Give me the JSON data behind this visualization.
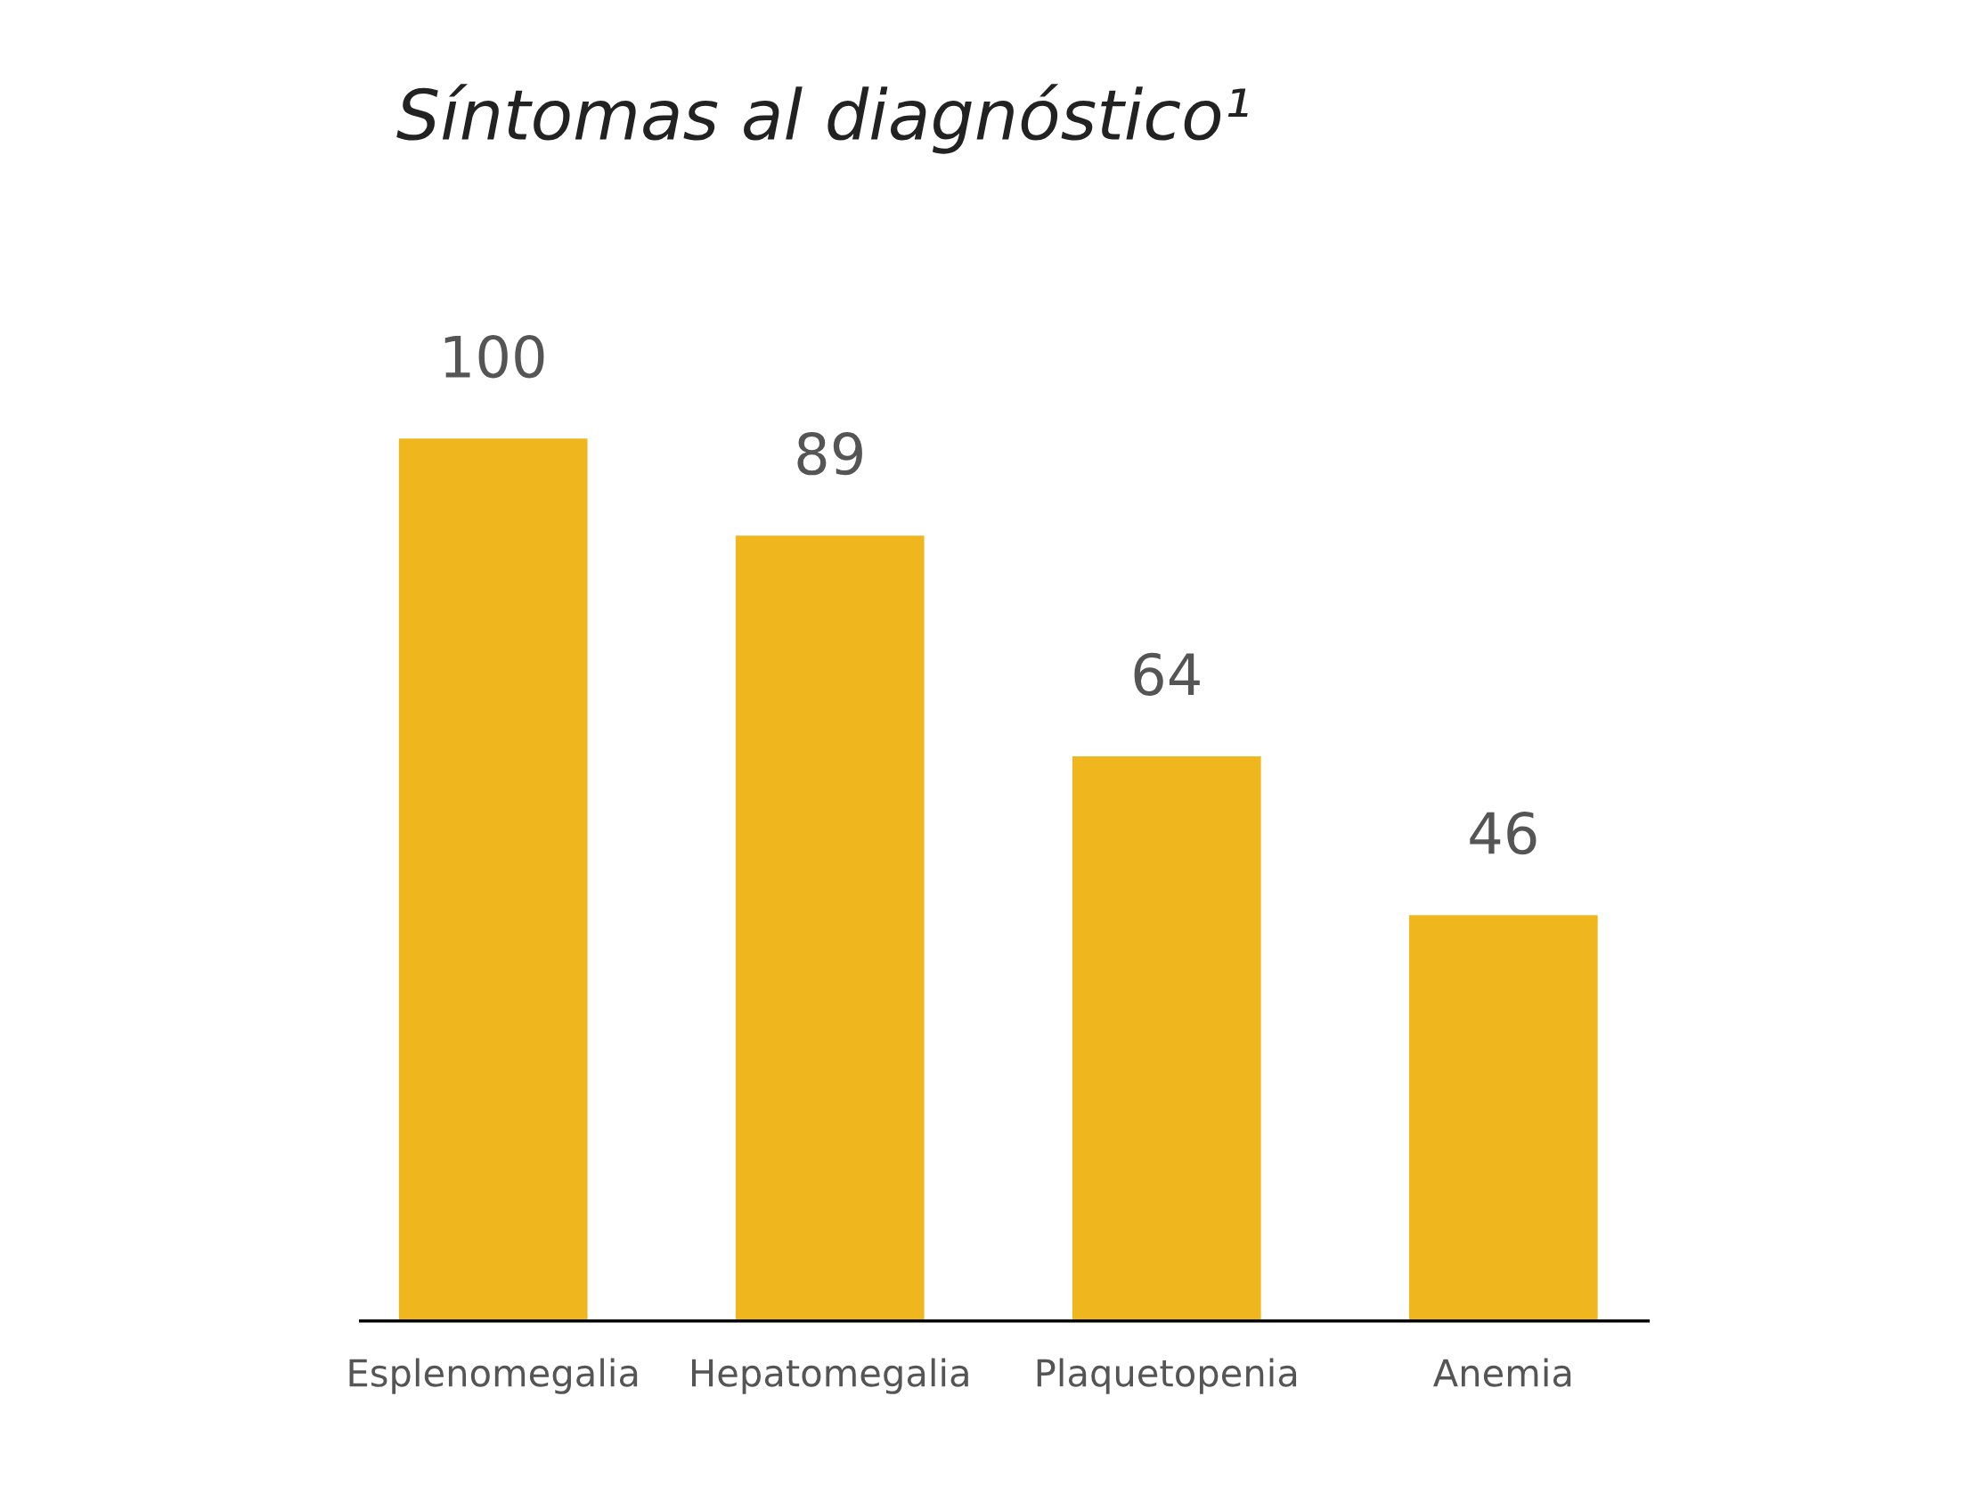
{
  "chart_data": {
    "type": "bar",
    "title": "Síntomas al diagnóstico¹",
    "categories": [
      "Esplenomegalia",
      "Hepatomegalia",
      "Plaquetopenia",
      "Anemia"
    ],
    "values": [
      100,
      89,
      64,
      46
    ],
    "color": "#f0b61e",
    "data_labels": true,
    "grid": false,
    "legend": false
  }
}
